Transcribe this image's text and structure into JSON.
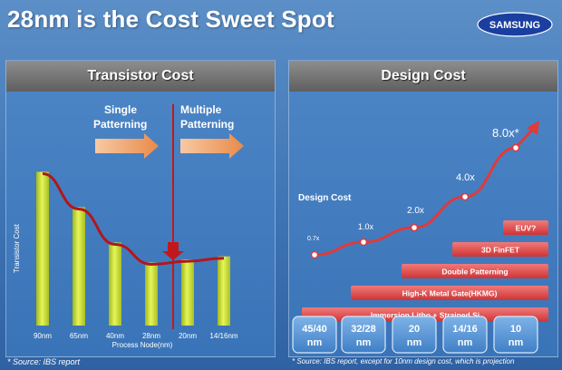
{
  "title": "28nm is the Cost Sweet Spot",
  "logo_text": "SAMSUNG",
  "left_panel": {
    "title": "Transistor Cost",
    "source": "* Source: IBS report",
    "single_line1": "Single",
    "single_line2": "Patterning",
    "multi_line1": "Multiple",
    "multi_line2": "Patterning"
  },
  "right_panel": {
    "title": "Design Cost",
    "source": "* Source: IBS report, except for 10nm design cost, which is projection",
    "series_label": "Design Cost",
    "tech_bars": [
      {
        "label": "EUV?",
        "start_node": 4
      },
      {
        "label": "3D FinFET",
        "start_node": 3
      },
      {
        "label": "Double Patterning",
        "start_node": 2
      },
      {
        "label": "High-K Metal Gate(HKMG)",
        "start_node": 1
      },
      {
        "label": "Immersion Litho + Strained Si",
        "start_node": 0
      }
    ],
    "nodes": [
      {
        "line1": "45/40",
        "line2": "nm"
      },
      {
        "line1": "32/28",
        "line2": "nm"
      },
      {
        "line1": "20",
        "line2": "nm"
      },
      {
        "line1": "14/16",
        "line2": "nm"
      },
      {
        "line1": "10",
        "line2": "nm"
      }
    ]
  },
  "chart_data": [
    {
      "type": "bar",
      "title": "Transistor Cost",
      "xlabel": "Process Node(nm)",
      "ylabel": "Transistor Cost",
      "categories": [
        "90nm",
        "65nm",
        "40nm",
        "28nm",
        "20nm",
        "14/16nm"
      ],
      "values": [
        100,
        77,
        54,
        41,
        43,
        45
      ],
      "trend_line": true,
      "ylim": [
        0,
        105
      ],
      "divider_between": [
        "28nm",
        "20nm"
      ],
      "colors": {
        "bar": "#d8ec3a",
        "trend": "#b3161b",
        "arrow": "#f0a36a"
      }
    },
    {
      "type": "line",
      "title": "Design Cost",
      "categories": [
        "45/40 nm",
        "32/28 nm",
        "20 nm",
        "14/16 nm",
        "10 nm"
      ],
      "value_labels": [
        "0.7x",
        "1.0x",
        "2.0x",
        "4.0x",
        "8.0x*"
      ],
      "values": [
        0.7,
        1.0,
        2.0,
        4.0,
        8.0
      ],
      "colors": {
        "line": "#e03a3a",
        "bars": "#e04a4a"
      }
    }
  ]
}
